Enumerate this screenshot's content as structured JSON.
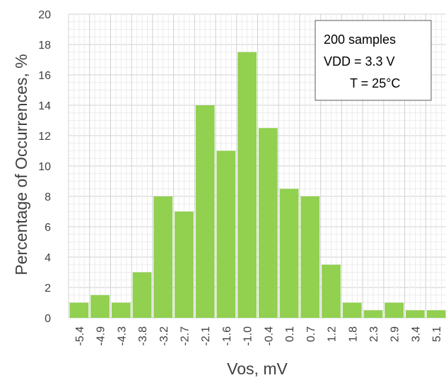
{
  "chart_data": {
    "type": "bar",
    "xlabel": "Vos, mV",
    "ylabel": "Percentage of Occurrences, %",
    "ylim": [
      0,
      20
    ],
    "yticks": [
      "0",
      "2",
      "4",
      "6",
      "8",
      "10",
      "12",
      "14",
      "16",
      "18",
      "20"
    ],
    "categories": [
      "-5.4",
      "-4.9",
      "-4.3",
      "-3.8",
      "-3.2",
      "-2.7",
      "-2.1",
      "-1.6",
      "-1.0",
      "-0.4",
      "0.1",
      "0.7",
      "1.2",
      "1.8",
      "2.3",
      "2.9",
      "3.4",
      "5.1"
    ],
    "values": [
      1.0,
      1.5,
      1.0,
      3.0,
      8.0,
      7.0,
      14.0,
      11.0,
      17.5,
      12.5,
      8.5,
      8.0,
      3.5,
      1.0,
      0.5,
      1.0,
      0.5,
      0.5
    ],
    "grid": true,
    "annotation": {
      "lines": [
        "200 samples",
        "VDD = 3.3 V",
        "T = 25°C"
      ],
      "placement": "top-right"
    },
    "colors": {
      "bar": "#92d050",
      "grid": "#d9d9d9",
      "text": "#404040"
    }
  }
}
